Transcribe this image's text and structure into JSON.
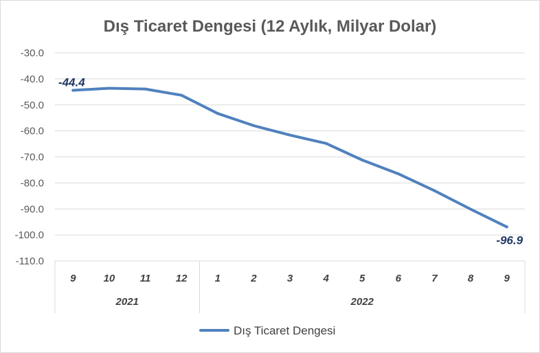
{
  "chart_data": {
    "type": "line",
    "title": "Dış Ticaret Dengesi (12 Aylık, Milyar Dolar)",
    "categories": [
      "9",
      "10",
      "11",
      "12",
      "1",
      "2",
      "3",
      "4",
      "5",
      "6",
      "7",
      "8",
      "9"
    ],
    "groups": [
      {
        "label": "2021",
        "count": 4
      },
      {
        "label": "2022",
        "count": 9
      }
    ],
    "series": [
      {
        "name": "Dış Ticaret Dengesi",
        "color": "#4f81bd",
        "values": [
          -44.4,
          -43.6,
          -43.9,
          -46.3,
          -53.3,
          -58.0,
          -61.6,
          -64.8,
          -71.2,
          -76.5,
          -83.0,
          -90.1,
          -96.9
        ]
      }
    ],
    "ylim": [
      -110,
      -30
    ],
    "yticks": [
      "-30.0",
      "-40.0",
      "-50.0",
      "-60.0",
      "-70.0",
      "-80.0",
      "-90.0",
      "-100.0",
      "-110.0"
    ],
    "data_labels": [
      {
        "index": 0,
        "text": "-44.4"
      },
      {
        "index": 12,
        "text": "-96.9"
      }
    ],
    "label_color": "#1f3864",
    "grid": true,
    "legend": "bottom"
  }
}
